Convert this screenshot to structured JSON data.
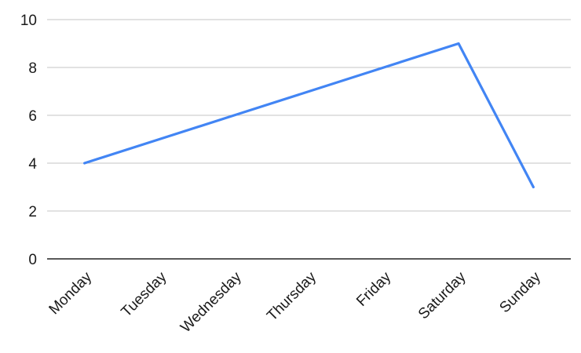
{
  "chart_data": {
    "type": "line",
    "categories": [
      "Monday",
      "Tuesday",
      "Wednesday",
      "Thursday",
      "Friday",
      "Saturday",
      "Sunday"
    ],
    "series": [
      {
        "values": [
          4,
          5,
          6,
          7,
          8,
          9,
          3
        ],
        "color": "#4285f4"
      }
    ],
    "ylim": [
      0,
      10
    ],
    "yticks": [
      "0",
      "2",
      "4",
      "6",
      "8",
      "10"
    ],
    "grid": true,
    "legend": "none"
  }
}
